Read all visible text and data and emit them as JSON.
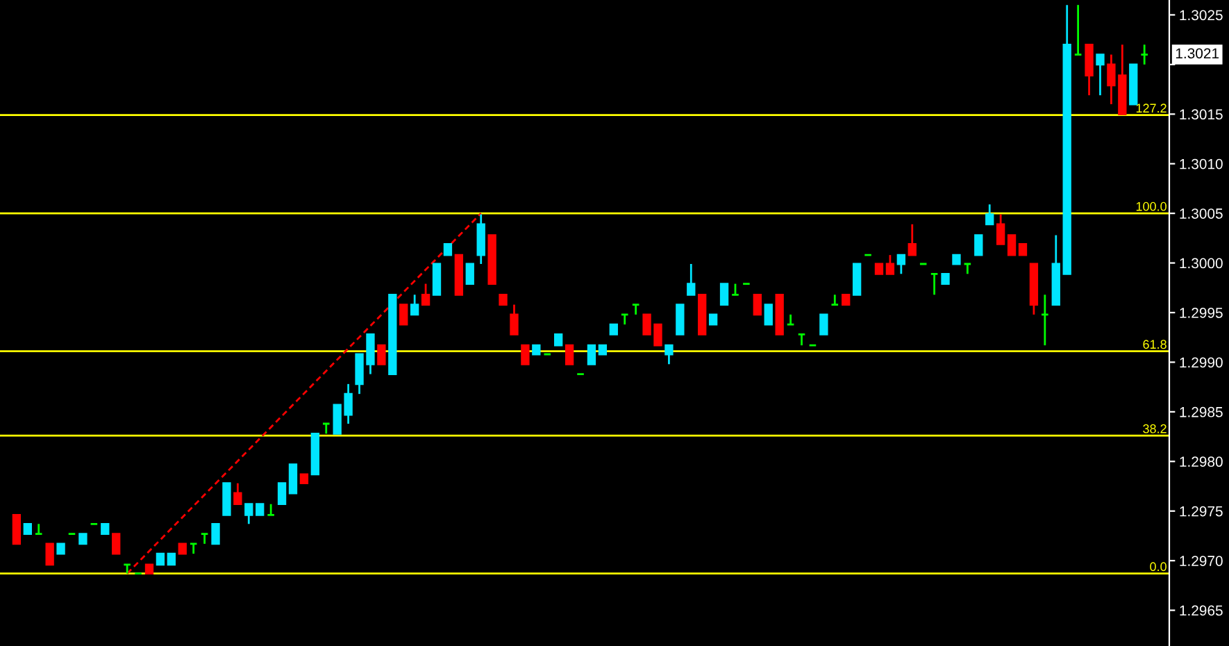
{
  "chart_data": {
    "type": "candlestick",
    "categories": [
      null,
      null,
      null,
      null,
      null,
      null,
      null,
      null,
      null,
      null,
      null,
      null,
      null,
      null,
      null,
      null,
      null,
      null,
      null,
      null,
      null,
      null,
      null,
      null,
      null,
      null,
      null,
      null,
      null,
      null,
      null,
      null,
      null,
      null,
      null,
      null,
      null,
      null,
      null,
      null,
      null,
      null,
      null,
      null,
      null,
      null,
      null,
      null,
      null,
      null,
      null,
      null,
      null,
      null,
      null,
      null,
      null,
      null,
      null,
      null,
      null,
      null,
      null,
      null,
      null,
      null,
      null,
      null,
      null,
      null,
      null,
      null,
      null,
      null,
      null,
      null,
      null,
      null,
      null,
      null,
      null,
      null,
      null,
      null,
      null,
      null,
      null,
      null,
      null,
      null,
      null,
      null,
      null,
      null,
      null,
      null,
      null,
      null,
      null,
      null,
      null,
      null,
      null
    ],
    "ohlc": [
      [
        1.29746,
        1.29746,
        1.29717,
        1.29717
      ],
      [
        1.29727,
        1.29737,
        1.29727,
        1.29737
      ],
      [
        1.29727,
        1.29737,
        1.29727,
        1.29727
      ],
      [
        1.29717,
        1.29717,
        1.29696,
        1.29696
      ],
      [
        1.29707,
        1.29717,
        1.29707,
        1.29717
      ],
      [
        1.29727,
        1.29727,
        1.29727,
        1.29727
      ],
      [
        1.29717,
        1.29727,
        1.29717,
        1.29727
      ],
      [
        1.29737,
        1.29737,
        1.29737,
        1.29737
      ],
      [
        1.29727,
        1.29737,
        1.29727,
        1.29737
      ],
      [
        1.29727,
        1.29727,
        1.29707,
        1.29707
      ],
      [
        1.29696,
        1.29696,
        1.29687,
        1.29696
      ],
      [
        1.29687,
        1.29687,
        1.29687,
        1.29687
      ],
      [
        1.29696,
        1.29696,
        1.29687,
        1.29687
      ],
      [
        1.29696,
        1.29707,
        1.29696,
        1.29707
      ],
      [
        1.29696,
        1.29707,
        1.29696,
        1.29707
      ],
      [
        1.29717,
        1.29717,
        1.29707,
        1.29707
      ],
      [
        1.29717,
        1.29717,
        1.29707,
        1.29717
      ],
      [
        1.29727,
        1.29727,
        1.29717,
        1.29727
      ],
      [
        1.29717,
        1.29737,
        1.29717,
        1.29737
      ],
      [
        1.29746,
        1.29778,
        1.29746,
        1.29778
      ],
      [
        1.29768,
        1.29778,
        1.29757,
        1.29757
      ],
      [
        1.29746,
        1.29757,
        1.29737,
        1.29757
      ],
      [
        1.29746,
        1.29757,
        1.29746,
        1.29757
      ],
      [
        1.29746,
        1.29757,
        1.29746,
        1.29746
      ],
      [
        1.29757,
        1.29778,
        1.29757,
        1.29778
      ],
      [
        1.29768,
        1.29797,
        1.29768,
        1.29797
      ],
      [
        1.29787,
        1.29787,
        1.29778,
        1.29778
      ],
      [
        1.29787,
        1.29828,
        1.29787,
        1.29828
      ],
      [
        1.29838,
        1.29838,
        1.29828,
        1.29838
      ],
      [
        1.29828,
        1.29857,
        1.29828,
        1.29857
      ],
      [
        1.29847,
        1.29878,
        1.29838,
        1.29868
      ],
      [
        1.29878,
        1.29908,
        1.29868,
        1.29908
      ],
      [
        1.29898,
        1.29928,
        1.29888,
        1.29928
      ],
      [
        1.29917,
        1.29917,
        1.29898,
        1.29898
      ],
      [
        1.29888,
        1.29968,
        1.29888,
        1.29968
      ],
      [
        1.29958,
        1.29958,
        1.29938,
        1.29938
      ],
      [
        1.29948,
        1.29968,
        1.29948,
        1.29958
      ],
      [
        1.29968,
        1.29979,
        1.29958,
        1.29958
      ],
      [
        1.29968,
        1.29999,
        1.29968,
        1.29999
      ],
      [
        1.30008,
        1.30019,
        1.30008,
        1.30019
      ],
      [
        1.30008,
        1.30008,
        1.29968,
        1.29968
      ],
      [
        1.29979,
        1.29999,
        1.29979,
        1.29999
      ],
      [
        1.30008,
        1.30049,
        1.29999,
        1.30039
      ],
      [
        1.30028,
        1.30028,
        1.29979,
        1.29979
      ],
      [
        1.29968,
        1.29968,
        1.29958,
        1.29958
      ],
      [
        1.29948,
        1.29958,
        1.29928,
        1.29928
      ],
      [
        1.29917,
        1.29917,
        1.29898,
        1.29898
      ],
      [
        1.29908,
        1.29917,
        1.29908,
        1.29917
      ],
      [
        1.29908,
        1.29908,
        1.29908,
        1.29908
      ],
      [
        1.29917,
        1.29928,
        1.29917,
        1.29928
      ],
      [
        1.29917,
        1.29917,
        1.29898,
        1.29898
      ],
      [
        1.29888,
        1.29888,
        1.29888,
        1.29888
      ],
      [
        1.29898,
        1.29917,
        1.29898,
        1.29917
      ],
      [
        1.29908,
        1.29917,
        1.29908,
        1.29917
      ],
      [
        1.29928,
        1.29938,
        1.29928,
        1.29938
      ],
      [
        1.29948,
        1.29948,
        1.29938,
        1.29948
      ],
      [
        1.29958,
        1.29958,
        1.29948,
        1.29958
      ],
      [
        1.29948,
        1.29948,
        1.29928,
        1.29928
      ],
      [
        1.29938,
        1.29938,
        1.29917,
        1.29917
      ],
      [
        1.29908,
        1.29917,
        1.29898,
        1.29917
      ],
      [
        1.29928,
        1.29958,
        1.29928,
        1.29958
      ],
      [
        1.29968,
        1.29999,
        1.29968,
        1.29979
      ],
      [
        1.29968,
        1.29968,
        1.29928,
        1.29928
      ],
      [
        1.29938,
        1.29948,
        1.29938,
        1.29948
      ],
      [
        1.29958,
        1.29979,
        1.29958,
        1.29979
      ],
      [
        1.29968,
        1.29979,
        1.29968,
        1.29968
      ],
      [
        1.29979,
        1.29979,
        1.29979,
        1.29979
      ],
      [
        1.29968,
        1.29968,
        1.29948,
        1.29948
      ],
      [
        1.29938,
        1.29958,
        1.29938,
        1.29958
      ],
      [
        1.29968,
        1.29968,
        1.29928,
        1.29928
      ],
      [
        1.29938,
        1.29948,
        1.29938,
        1.29938
      ],
      [
        1.29928,
        1.29928,
        1.29917,
        1.29928
      ],
      [
        1.29917,
        1.29917,
        1.29917,
        1.29917
      ],
      [
        1.29928,
        1.29948,
        1.29928,
        1.29948
      ],
      [
        1.29958,
        1.29968,
        1.29958,
        1.29958
      ],
      [
        1.29968,
        1.29968,
        1.29958,
        1.29958
      ],
      [
        1.29968,
        1.29999,
        1.29968,
        1.29999
      ],
      [
        1.30008,
        1.30008,
        1.30008,
        1.30008
      ],
      [
        1.29999,
        1.29999,
        1.29989,
        1.29989
      ],
      [
        1.29999,
        1.30008,
        1.29989,
        1.29989
      ],
      [
        1.29999,
        1.30008,
        1.29989,
        1.30008
      ],
      [
        1.30019,
        1.30039,
        1.30008,
        1.30008
      ],
      [
        1.29999,
        1.29999,
        1.29999,
        1.29999
      ],
      [
        1.29989,
        1.29989,
        1.29968,
        1.29989
      ],
      [
        1.29979,
        1.29989,
        1.29979,
        1.29989
      ],
      [
        1.29999,
        1.30008,
        1.29999,
        1.30008
      ],
      [
        1.29999,
        1.29999,
        1.29989,
        1.29999
      ],
      [
        1.30008,
        1.30028,
        1.30008,
        1.30028
      ],
      [
        1.30039,
        1.30059,
        1.30039,
        1.30049
      ],
      [
        1.30039,
        1.30049,
        1.30019,
        1.30019
      ],
      [
        1.30028,
        1.30028,
        1.30008,
        1.30008
      ],
      [
        1.30019,
        1.30019,
        1.30008,
        1.30008
      ],
      [
        1.29999,
        1.29999,
        1.29948,
        1.29958
      ],
      [
        1.29948,
        1.29968,
        1.29917,
        1.29948
      ],
      [
        1.29958,
        1.30028,
        1.29958,
        1.29999
      ],
      [
        1.29989,
        1.3026,
        1.29989,
        1.3022
      ],
      [
        1.3021,
        1.3026,
        1.3021,
        1.3021
      ],
      [
        1.3022,
        1.3022,
        1.30169,
        1.30189
      ],
      [
        1.302,
        1.3021,
        1.30169,
        1.3021
      ],
      [
        1.302,
        1.3021,
        1.3016,
        1.30179
      ],
      [
        1.30189,
        1.3022,
        1.3015,
        1.3015
      ],
      [
        1.3016,
        1.302,
        1.3016,
        1.302
      ],
      [
        1.3021,
        1.3022,
        1.302,
        1.3021
      ]
    ],
    "colors": [
      "#ff0000",
      "#00e5ff",
      "#00ff00",
      "#ff0000",
      "#00e5ff",
      "#00ff00",
      "#00e5ff",
      "#00ff00",
      "#00e5ff",
      "#ff0000",
      "#00ff00",
      "#00ff00",
      "#ff0000",
      "#00e5ff",
      "#00e5ff",
      "#ff0000",
      "#00ff00",
      "#00ff00",
      "#00e5ff",
      "#00e5ff",
      "#ff0000",
      "#00e5ff",
      "#00e5ff",
      "#00ff00",
      "#00e5ff",
      "#00e5ff",
      "#ff0000",
      "#00e5ff",
      "#00ff00",
      "#00e5ff",
      "#00e5ff",
      "#00e5ff",
      "#00e5ff",
      "#ff0000",
      "#00e5ff",
      "#ff0000",
      "#00e5ff",
      "#ff0000",
      "#00e5ff",
      "#00e5ff",
      "#ff0000",
      "#00e5ff",
      "#00e5ff",
      "#ff0000",
      "#ff0000",
      "#ff0000",
      "#ff0000",
      "#00e5ff",
      "#00ff00",
      "#00e5ff",
      "#ff0000",
      "#00ff00",
      "#00e5ff",
      "#00e5ff",
      "#00e5ff",
      "#00ff00",
      "#00ff00",
      "#ff0000",
      "#ff0000",
      "#00e5ff",
      "#00e5ff",
      "#00e5ff",
      "#ff0000",
      "#00e5ff",
      "#00e5ff",
      "#00ff00",
      "#00ff00",
      "#ff0000",
      "#00e5ff",
      "#ff0000",
      "#00ff00",
      "#00ff00",
      "#00ff00",
      "#00e5ff",
      "#00ff00",
      "#ff0000",
      "#00e5ff",
      "#00ff00",
      "#ff0000",
      "#ff0000",
      "#00e5ff",
      "#ff0000",
      "#00ff00",
      "#00ff00",
      "#00e5ff",
      "#00e5ff",
      "#00ff00",
      "#00e5ff",
      "#00e5ff",
      "#ff0000",
      "#ff0000",
      "#ff0000",
      "#ff0000",
      "#00ff00",
      "#00e5ff",
      "#00e5ff",
      "#00ff00",
      "#ff0000",
      "#00e5ff",
      "#ff0000",
      "#ff0000",
      "#00e5ff",
      "#00ff00"
    ],
    "series": [
      {
        "type": "line",
        "values": [
          null,
          null,
          null,
          null,
          null,
          null,
          null,
          null,
          null,
          null,
          1.29687,
          null,
          null,
          null,
          null,
          null,
          null,
          null,
          null,
          null,
          null,
          null,
          null,
          null,
          null,
          null,
          null,
          null,
          null,
          null,
          null,
          null,
          null,
          null,
          null,
          null,
          null,
          null,
          null,
          null,
          null,
          null,
          1.3005,
          null,
          null,
          null,
          null,
          null,
          null,
          null,
          null,
          null,
          null,
          null,
          null,
          null,
          null,
          null,
          null,
          null,
          null,
          null,
          null,
          null,
          null,
          null,
          null,
          null,
          null,
          null,
          null,
          null,
          null,
          null,
          null,
          null,
          null,
          null,
          null,
          null,
          null,
          null,
          null,
          null,
          null,
          null,
          null,
          null,
          null,
          null,
          null,
          null,
          null,
          null,
          null,
          null,
          null,
          null,
          null,
          null,
          null,
          null,
          null
        ],
        "color": "#ff0000",
        "line_style": "dashed"
      }
    ],
    "ylim": [
      1.29614,
      1.30265
    ],
    "yticks": [
      {
        "value": 1.2965,
        "label": "1.2965"
      },
      {
        "value": 1.297,
        "label": "1.2970"
      },
      {
        "value": 1.2975,
        "label": "1.2975"
      },
      {
        "value": 1.298,
        "label": "1.2980"
      },
      {
        "value": 1.2985,
        "label": "1.2985"
      },
      {
        "value": 1.299,
        "label": "1.2990"
      },
      {
        "value": 1.2995,
        "label": "1.2995"
      },
      {
        "value": 1.3,
        "label": "1.3000"
      },
      {
        "value": 1.3005,
        "label": "1.3005"
      },
      {
        "value": 1.301,
        "label": "1.3010"
      },
      {
        "value": 1.3015,
        "label": "1.3015"
      },
      {
        "value": 1.302,
        "label": null
      },
      {
        "value": 1.3025,
        "label": "1.3025"
      }
    ],
    "ref_lines": [
      {
        "axis": "y",
        "value": 1.29687,
        "color": "#ffff00"
      },
      {
        "axis": "y",
        "value": 1.29826,
        "color": "#ffff00"
      },
      {
        "axis": "y",
        "value": 1.29911,
        "color": "#ffff00"
      },
      {
        "axis": "y",
        "value": 1.3005,
        "color": "#ffff00"
      },
      {
        "axis": "y",
        "value": 1.30149,
        "color": "#ffff00"
      }
    ],
    "annotations": [
      {
        "text": "0.0",
        "y": 1.29687
      },
      {
        "text": "38.2",
        "y": 1.29826
      },
      {
        "text": "61.8",
        "y": 1.29911
      },
      {
        "text": "100.0",
        "y": 1.3005
      },
      {
        "text": "127.2",
        "y": 1.30149
      },
      "1.3021"
    ],
    "tick_labels": "y",
    "grid": false
  }
}
